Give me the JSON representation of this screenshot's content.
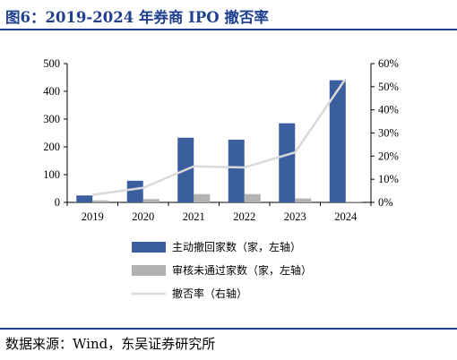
{
  "header": {
    "title": "图6：2019-2024 年券商 IPO 撤否率"
  },
  "footer": {
    "source": "数据来源：Wind，东吴证券研究所"
  },
  "chart_data": {
    "type": "bar",
    "categories": [
      "2019",
      "2020",
      "2021",
      "2022",
      "2023",
      "2024"
    ],
    "series": [
      {
        "name": "主动撤回家数（家，左轴）",
        "type": "bar",
        "axis": "left",
        "values": [
          25,
          78,
          233,
          226,
          285,
          440
        ],
        "color": "#3a5e9e"
      },
      {
        "name": "审核未通过家数（家，左轴）",
        "type": "bar",
        "axis": "left",
        "values": [
          7,
          12,
          30,
          30,
          14,
          3
        ],
        "color": "#b2b2b2"
      },
      {
        "name": "撤否率（右轴）",
        "type": "line",
        "axis": "right",
        "values": [
          3.3,
          6.3,
          15.6,
          15.1,
          21.6,
          53.5
        ],
        "unit": "%",
        "color": "#d9d9d9"
      }
    ],
    "y_left": {
      "lim": [
        0,
        500
      ],
      "ticks": [
        0,
        100,
        200,
        300,
        400,
        500
      ]
    },
    "y_right": {
      "lim": [
        0,
        60
      ],
      "ticks": [
        "0%",
        "10%",
        "20%",
        "30%",
        "40%",
        "50%",
        "60%"
      ]
    },
    "grid": false,
    "legend_placement": "bottom"
  }
}
